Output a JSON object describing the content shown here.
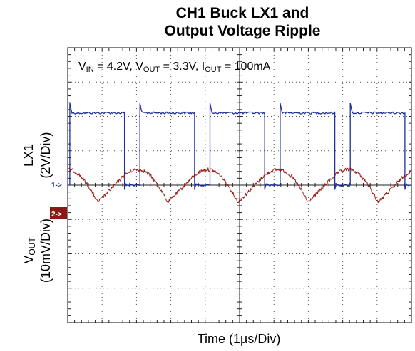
{
  "chart_data": {
    "type": "line",
    "title_line1": "CH1 Buck LX1 and",
    "title_line2": "Output Voltage Ripple",
    "conditions": {
      "vin": "V",
      "vin_sub": "IN",
      "vin_val": " = 4.2V, ",
      "vout": "V",
      "vout_sub": "OUT",
      "vout_val": " = 3.3V, ",
      "iout": "I",
      "iout_sub": "OUT",
      "iout_val": " = 100mA"
    },
    "xlabel": "Time (1µs/Div)",
    "x_divisions": 10,
    "y_divisions": 8,
    "grid": true,
    "series": [
      {
        "name_main": "LX1",
        "name_unit": "(2V/Div)",
        "marker": "1->",
        "color": "#1f2fa0",
        "low_div": 0,
        "high_div": 2.1,
        "period_div": 2.04,
        "duty": 0.78,
        "high_start_div": 0.06
      },
      {
        "name_main": "V",
        "name_sub": "OUT",
        "name_unit": "(10mV/Div)",
        "marker": "2->",
        "color": "#9b1a14",
        "period_div": 2.04,
        "peak_offset_div": -0.5,
        "trough_offset_div": 0.5
      }
    ],
    "colors": {
      "lx1": "#1f2fa0",
      "vout": "#9b1a14",
      "marker_bg": "#8b1a16",
      "grid": "#555555"
    }
  }
}
